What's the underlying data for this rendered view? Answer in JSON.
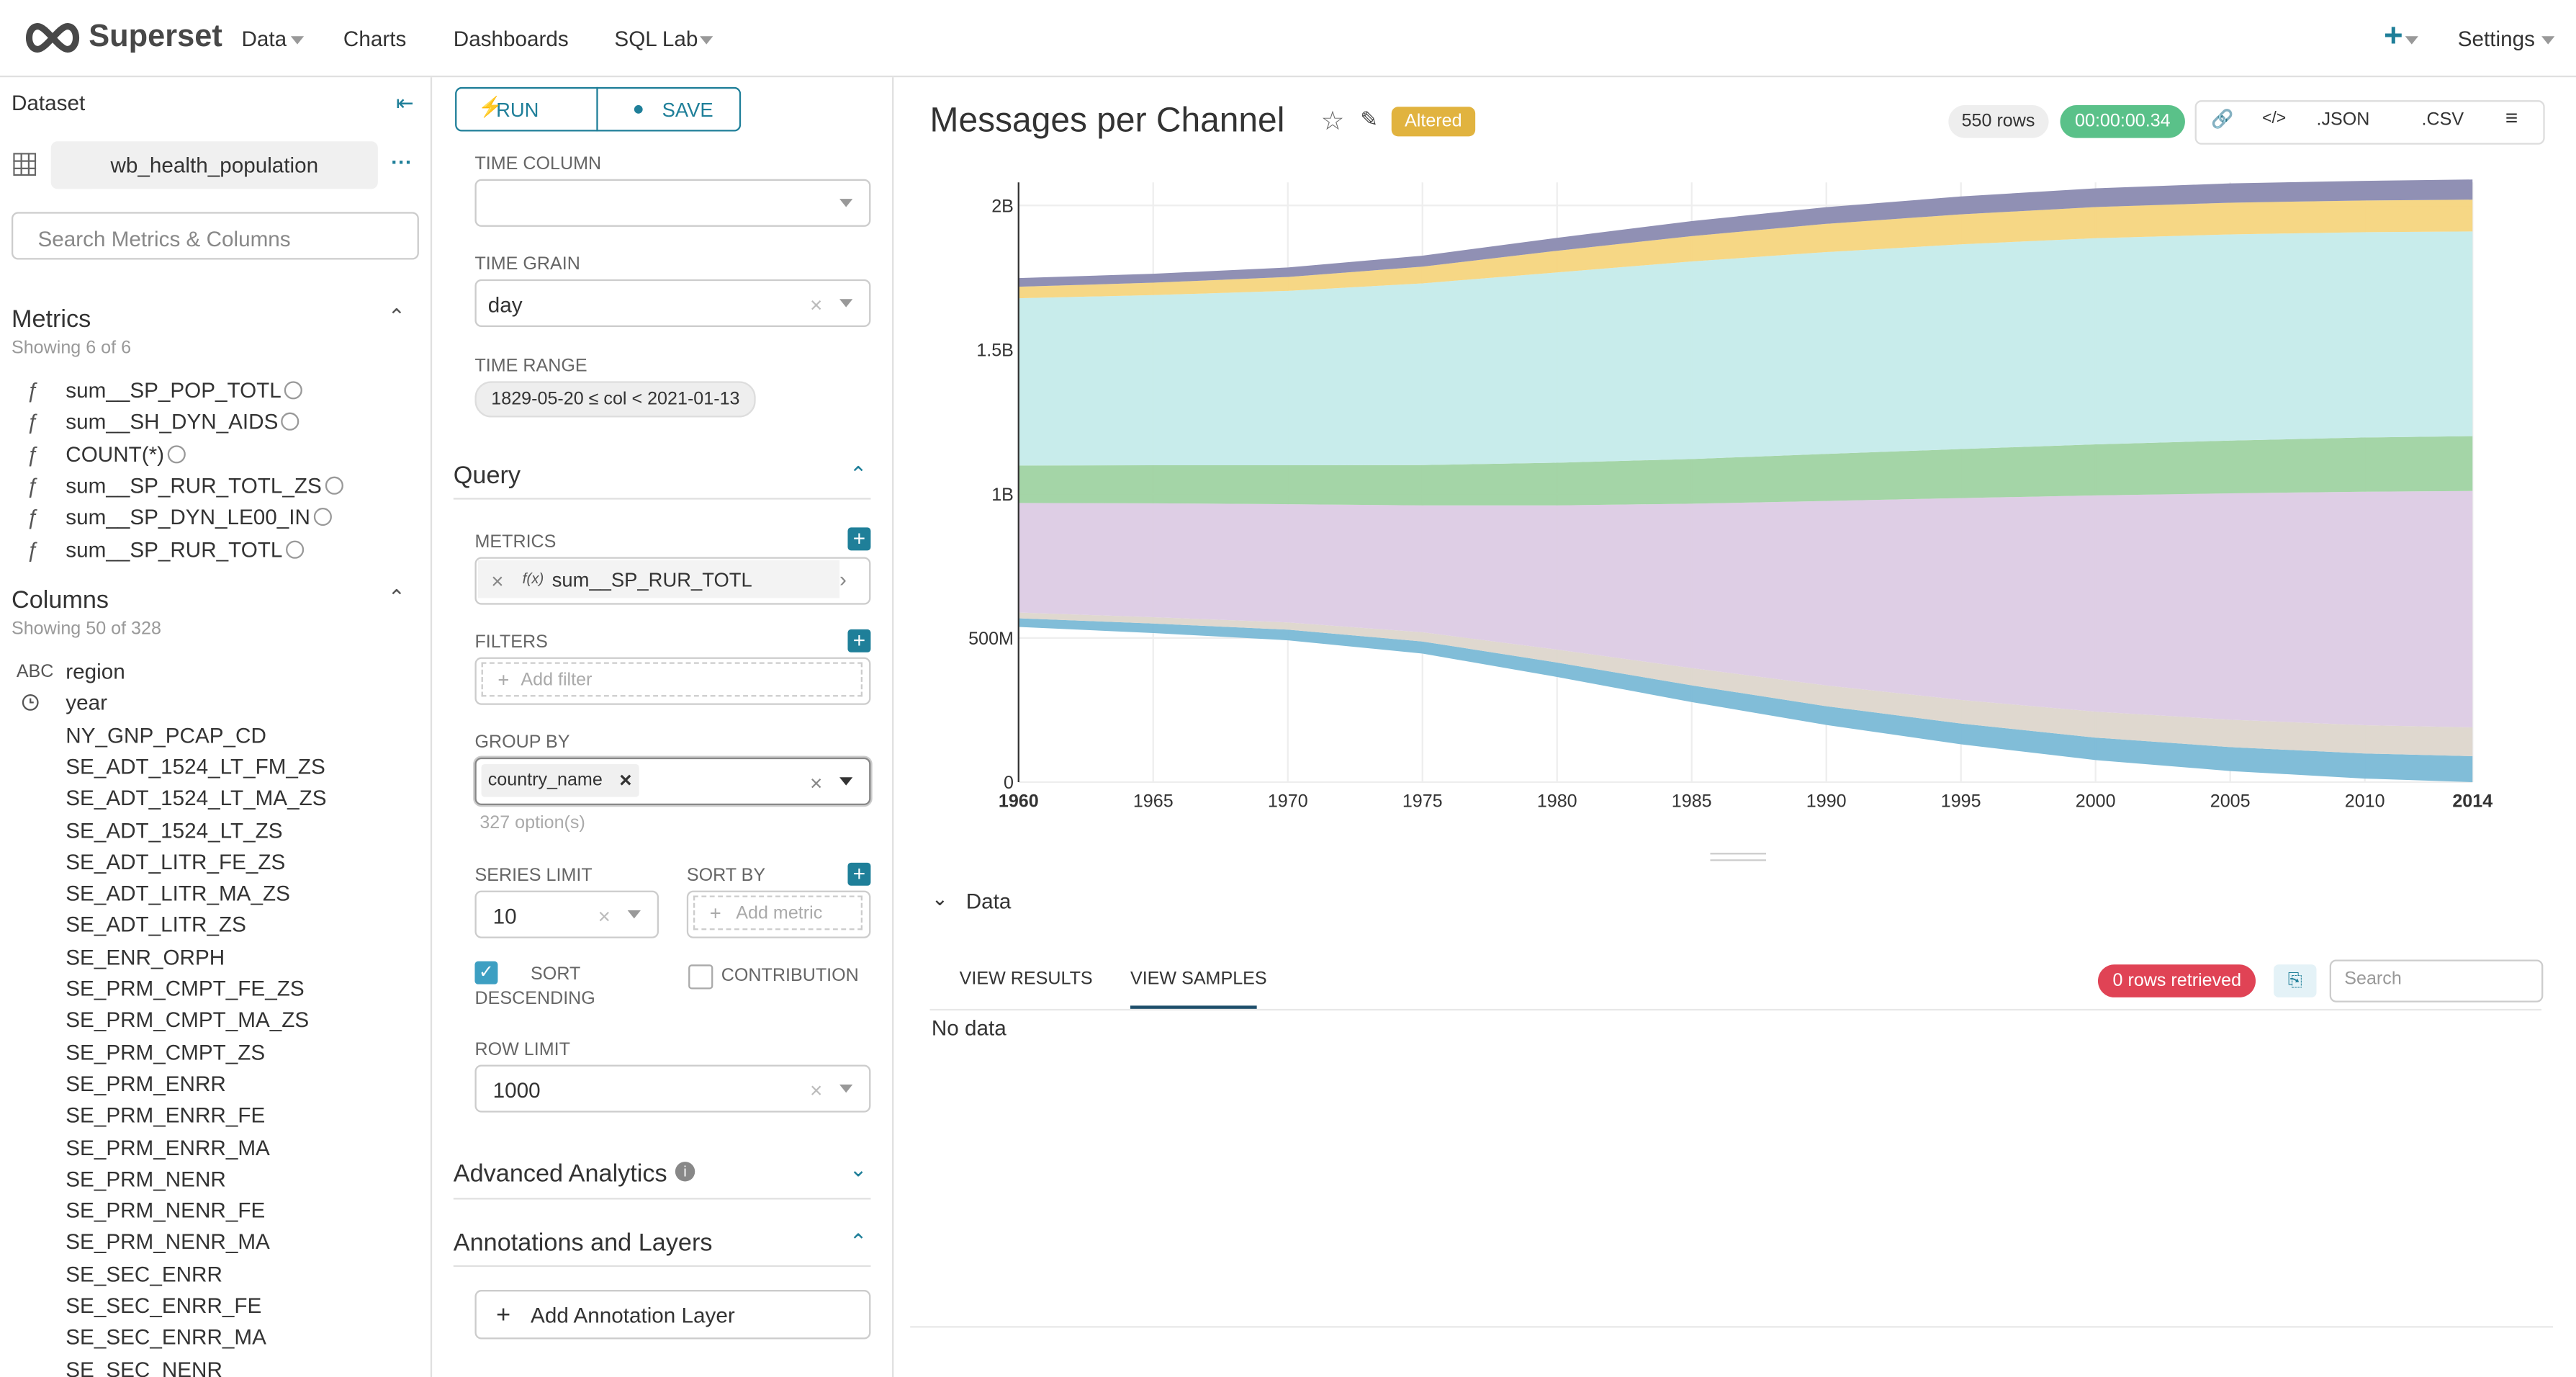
{
  "nav": {
    "brand": "Superset",
    "menu": [
      "Data",
      "Charts",
      "Dashboards",
      "SQL Lab"
    ],
    "settings": "Settings"
  },
  "dataset": {
    "label": "Dataset",
    "name": "wb_health_population",
    "search_placeholder": "Search Metrics & Columns",
    "metrics_title": "Metrics",
    "metrics_count": "Showing 6 of 6",
    "metric_icon": "ƒ",
    "metrics": [
      "sum__SP_POP_TOTL",
      "sum__SH_DYN_AIDS",
      "COUNT(*)",
      "sum__SP_RUR_TOTL_ZS",
      "sum__SP_DYN_LE00_IN",
      "sum__SP_RUR_TOTL"
    ],
    "columns_title": "Columns",
    "columns_count": "Showing 50 of 328",
    "column_type": "ABC",
    "columns": [
      "region",
      "year",
      "NY_GNP_PCAP_CD",
      "SE_ADT_1524_LT_FM_ZS",
      "SE_ADT_1524_LT_MA_ZS",
      "SE_ADT_1524_LT_ZS",
      "SE_ADT_LITR_FE_ZS",
      "SE_ADT_LITR_MA_ZS",
      "SE_ADT_LITR_ZS",
      "SE_ENR_ORPH",
      "SE_PRM_CMPT_FE_ZS",
      "SE_PRM_CMPT_MA_ZS",
      "SE_PRM_CMPT_ZS",
      "SE_PRM_ENRR",
      "SE_PRM_ENRR_FE",
      "SE_PRM_ENRR_MA",
      "SE_PRM_NENR",
      "SE_PRM_NENR_FE",
      "SE_PRM_NENR_MA",
      "SE_SEC_ENRR",
      "SE_SEC_ENRR_FE",
      "SE_SEC_ENRR_MA",
      "SE_SEC_NENR"
    ]
  },
  "controls": {
    "run": "RUN",
    "save": "SAVE",
    "time_column": "TIME COLUMN",
    "time_grain": "TIME GRAIN",
    "time_grain_value": "day",
    "time_range": "TIME RANGE",
    "time_range_value": "1829-05-20 ≤ col < 2021-01-13",
    "query": "Query",
    "metrics_label": "METRICS",
    "metric_fx": "f(x)",
    "metric_value": "sum__SP_RUR_TOTL",
    "filters_label": "FILTERS",
    "add_filter": "Add filter",
    "group_by": "GROUP BY",
    "group_by_value": "country_name",
    "options": "327 option(s)",
    "series_limit": "SERIES LIMIT",
    "series_limit_value": "10",
    "sort_by": "SORT BY",
    "add_metric": "Add metric",
    "sort_descending": "SORT DESCENDING",
    "contribution": "CONTRIBUTION",
    "row_limit": "ROW LIMIT",
    "row_limit_value": "1000",
    "advanced": "Advanced Analytics",
    "annotations": "Annotations and Layers",
    "add_annotation": "Add Annotation Layer"
  },
  "chart_header": {
    "title": "Messages per Channel",
    "altered": "Altered",
    "rows": "550 rows",
    "timer": "00:00:00.34",
    "json": ".JSON",
    "csv": ".CSV"
  },
  "chart_data": {
    "type": "stream",
    "x": [
      1960,
      1965,
      1970,
      1975,
      1980,
      1985,
      1990,
      1995,
      2000,
      2005,
      2010,
      2014
    ],
    "xlim": [
      1960,
      2014
    ],
    "xticks": [
      1960,
      1965,
      1970,
      1975,
      1980,
      1985,
      1990,
      1995,
      2000,
      2005,
      2010,
      2014
    ],
    "ylim": [
      0,
      2080000000
    ],
    "yticks": [
      0,
      {
        "value": 500000000,
        "label": "500M"
      },
      {
        "value": 1000000000,
        "label": "1B"
      },
      {
        "value": 1500000000,
        "label": "1.5B"
      },
      {
        "value": 2000000000,
        "label": "2B"
      }
    ],
    "grid": true,
    "series": [
      {
        "color": "#7ab9d6",
        "values": [
          30000000,
          33000000,
          37000000,
          42000000,
          50000000,
          58000000,
          65000000,
          72000000,
          78000000,
          83000000,
          87000000,
          90000000
        ]
      },
      {
        "color": "#ddd6cc",
        "values": [
          20000000,
          22000000,
          25000000,
          32000000,
          45000000,
          60000000,
          72000000,
          82000000,
          90000000,
          95000000,
          98000000,
          100000000
        ]
      },
      {
        "color": "#dccbe4",
        "values": [
          380000000,
          395000000,
          410000000,
          440000000,
          500000000,
          570000000,
          640000000,
          700000000,
          750000000,
          785000000,
          810000000,
          820000000
        ]
      },
      {
        "color": "#9fd3a2",
        "values": [
          130000000,
          132000000,
          135000000,
          140000000,
          148000000,
          155000000,
          163000000,
          170000000,
          177000000,
          183000000,
          188000000,
          190000000
        ]
      },
      {
        "color": "#c5ebea",
        "values": [
          580000000,
          590000000,
          605000000,
          630000000,
          660000000,
          685000000,
          700000000,
          710000000,
          715000000,
          715000000,
          712000000,
          710000000
        ]
      },
      {
        "color": "#f5d57e",
        "values": [
          40000000,
          43000000,
          48000000,
          58000000,
          75000000,
          88000000,
          98000000,
          104000000,
          108000000,
          110000000,
          110000000,
          110000000
        ]
      },
      {
        "color": "#8a8ab0",
        "values": [
          30000000,
          31000000,
          33000000,
          38000000,
          45000000,
          52000000,
          58000000,
          62000000,
          65000000,
          67000000,
          68000000,
          70000000
        ]
      }
    ]
  },
  "data_pane": {
    "title": "Data",
    "tabs": [
      "VIEW RESULTS",
      "VIEW SAMPLES"
    ],
    "retrieved": "0 rows retrieved",
    "search": "Search",
    "empty": "No data"
  }
}
